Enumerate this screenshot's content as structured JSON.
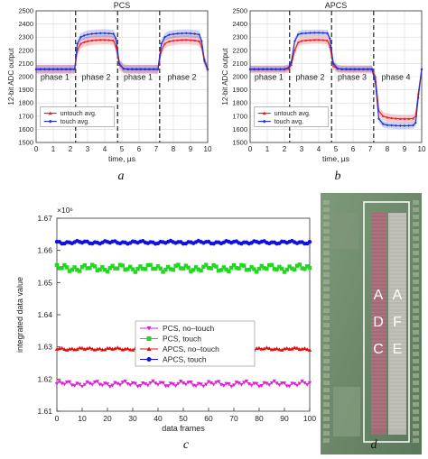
{
  "chart_data": [
    {
      "id": "a",
      "type": "line",
      "title": "PCS",
      "xlabel": "time, µs",
      "ylabel": "12-bit ADC output",
      "xlim": [
        0,
        10
      ],
      "ylim": [
        1500,
        2500
      ],
      "xticks": [
        "0",
        "1",
        "2",
        "3",
        "4",
        "5",
        "6",
        "7",
        "8",
        "9",
        "10"
      ],
      "yticks": [
        "1500",
        "1600",
        "1700",
        "1800",
        "1900",
        "2000",
        "2100",
        "2200",
        "2300",
        "2400",
        "2500"
      ],
      "grid": true,
      "legend_position": "bottom-left",
      "phase_boundaries": [
        2.3,
        4.75,
        7.2
      ],
      "phases": [
        {
          "label": "phase 1",
          "x": 1.1
        },
        {
          "label": "phase 2",
          "x": 3.5
        },
        {
          "label": "phase 1",
          "x": 5.95
        },
        {
          "label": "phase 2",
          "x": 8.5
        }
      ],
      "series": [
        {
          "name": "untouch avg.",
          "color": "#e8202a",
          "marker": "triangle",
          "x": [
            0,
            0.25,
            0.5,
            0.75,
            1,
            1.25,
            1.5,
            1.75,
            2,
            2.25,
            2.4,
            2.6,
            2.8,
            3.0,
            3.25,
            3.5,
            3.75,
            4,
            4.25,
            4.5,
            4.65,
            4.85,
            5.1,
            5.35,
            5.6,
            5.85,
            6.1,
            6.35,
            6.6,
            6.85,
            7.1,
            7.3,
            7.5,
            7.75,
            8,
            8.25,
            8.5,
            8.75,
            9,
            9.25,
            9.5,
            9.65,
            9.8,
            10
          ],
          "y": [
            2055,
            2055,
            2055,
            2055,
            2055,
            2055,
            2055,
            2055,
            2055,
            2055,
            2200,
            2250,
            2262,
            2270,
            2275,
            2278,
            2280,
            2280,
            2278,
            2275,
            2230,
            2090,
            2060,
            2056,
            2055,
            2055,
            2055,
            2055,
            2055,
            2055,
            2055,
            2200,
            2250,
            2268,
            2273,
            2277,
            2279,
            2280,
            2278,
            2275,
            2270,
            2230,
            2120,
            2055
          ],
          "band": 35
        },
        {
          "name": "touch avg.",
          "color": "#2233cc",
          "marker": "diamond",
          "x": [
            0,
            0.25,
            0.5,
            0.75,
            1,
            1.25,
            1.5,
            1.75,
            2,
            2.25,
            2.4,
            2.6,
            2.8,
            3.0,
            3.25,
            3.5,
            3.75,
            4,
            4.25,
            4.5,
            4.65,
            4.85,
            5.1,
            5.35,
            5.6,
            5.85,
            6.1,
            6.35,
            6.6,
            6.85,
            7.1,
            7.3,
            7.5,
            7.75,
            8,
            8.25,
            8.5,
            8.75,
            9,
            9.25,
            9.5,
            9.65,
            9.8,
            10
          ],
          "y": [
            2058,
            2058,
            2058,
            2058,
            2058,
            2058,
            2058,
            2058,
            2058,
            2058,
            2250,
            2300,
            2312,
            2320,
            2325,
            2328,
            2330,
            2330,
            2328,
            2325,
            2290,
            2100,
            2060,
            2058,
            2058,
            2058,
            2058,
            2058,
            2058,
            2058,
            2058,
            2250,
            2300,
            2318,
            2323,
            2327,
            2329,
            2330,
            2328,
            2325,
            2320,
            2270,
            2130,
            2058
          ],
          "band": 30
        }
      ]
    },
    {
      "id": "b",
      "type": "line",
      "title": "APCS",
      "xlabel": "time, µs",
      "ylabel": "12-bit ADC output",
      "xlim": [
        0,
        10
      ],
      "ylim": [
        1500,
        2500
      ],
      "xticks": [
        "0",
        "1",
        "2",
        "3",
        "4",
        "5",
        "6",
        "7",
        "8",
        "9",
        "10"
      ],
      "yticks": [
        "1500",
        "1600",
        "1700",
        "1800",
        "1900",
        "2000",
        "2100",
        "2200",
        "2300",
        "2400",
        "2500"
      ],
      "grid": true,
      "legend_position": "bottom-left",
      "phase_boundaries": [
        2.3,
        4.75,
        7.2
      ],
      "phases": [
        {
          "label": "phase 1",
          "x": 1.1
        },
        {
          "label": "phase 2",
          "x": 3.5
        },
        {
          "label": "phase 3",
          "x": 5.95
        },
        {
          "label": "phase 4",
          "x": 8.5
        }
      ],
      "series": [
        {
          "name": "untouch avg.",
          "color": "#e8202a",
          "marker": "triangle",
          "x": [
            0,
            0.25,
            0.5,
            0.75,
            1,
            1.25,
            1.5,
            1.75,
            2,
            2.25,
            2.4,
            2.6,
            2.8,
            3.0,
            3.25,
            3.5,
            3.75,
            4,
            4.25,
            4.5,
            4.65,
            4.85,
            5.1,
            5.35,
            5.6,
            5.85,
            6.1,
            6.35,
            6.6,
            6.85,
            7.1,
            7.3,
            7.5,
            7.75,
            8,
            8.25,
            8.5,
            8.75,
            9,
            9.25,
            9.5,
            9.65,
            9.8,
            10
          ],
          "y": [
            2055,
            2055,
            2055,
            2055,
            2055,
            2055,
            2055,
            2055,
            2055,
            2060,
            2090,
            2200,
            2260,
            2272,
            2276,
            2278,
            2280,
            2280,
            2278,
            2275,
            2230,
            2080,
            2060,
            2056,
            2055,
            2055,
            2055,
            2055,
            2055,
            2055,
            2055,
            2000,
            1740,
            1700,
            1690,
            1685,
            1682,
            1680,
            1680,
            1680,
            1682,
            1700,
            1870,
            2055
          ],
          "band": 30
        },
        {
          "name": "touch avg.",
          "color": "#2233cc",
          "marker": "diamond",
          "x": [
            0,
            0.25,
            0.5,
            0.75,
            1,
            1.25,
            1.5,
            1.75,
            2,
            2.25,
            2.4,
            2.6,
            2.8,
            3.0,
            3.25,
            3.5,
            3.75,
            4,
            4.25,
            4.5,
            4.65,
            4.85,
            5.1,
            5.35,
            5.6,
            5.85,
            6.1,
            6.35,
            6.6,
            6.85,
            7.1,
            7.3,
            7.5,
            7.75,
            8,
            8.25,
            8.5,
            8.75,
            9,
            9.25,
            9.5,
            9.65,
            9.8,
            10
          ],
          "y": [
            2058,
            2058,
            2058,
            2058,
            2058,
            2058,
            2058,
            2058,
            2058,
            2070,
            2110,
            2270,
            2320,
            2328,
            2330,
            2332,
            2333,
            2333,
            2332,
            2330,
            2290,
            2100,
            2062,
            2058,
            2058,
            2058,
            2058,
            2058,
            2058,
            2058,
            2058,
            1960,
            1680,
            1640,
            1632,
            1630,
            1628,
            1627,
            1627,
            1628,
            1630,
            1650,
            1840,
            2058
          ],
          "band": 25
        }
      ]
    },
    {
      "id": "c",
      "type": "scatter",
      "title": "",
      "xlabel": "data frames",
      "ylabel": "integrated data value",
      "yscale_label": "×10⁶",
      "xlim": [
        0,
        100
      ],
      "ylim": [
        1.61,
        1.67
      ],
      "xticks": [
        "0",
        "10",
        "20",
        "30",
        "40",
        "50",
        "60",
        "70",
        "80",
        "90",
        "100"
      ],
      "yticks": [
        "1.61",
        "1.62",
        "1.63",
        "1.64",
        "1.65",
        "1.66",
        "1.67"
      ],
      "grid": false,
      "legend_position": "center",
      "series": [
        {
          "name": "PCS, no–touch",
          "color": "#e020d8",
          "marker": "triangle-down",
          "base": 1.6185,
          "amp": 0.0009
        },
        {
          "name": "PCS, touch",
          "color": "#1fd81f",
          "marker": "square",
          "base": 1.6545,
          "amp": 0.0012
        },
        {
          "name": "APCS, no–touch",
          "color": "#e01010",
          "marker": "triangle",
          "base": 1.6294,
          "amp": 0.0004
        },
        {
          "name": "APCS, touch",
          "color": "#1010e0",
          "marker": "circle",
          "base": 1.6625,
          "amp": 0.0005
        }
      ]
    }
  ],
  "panel_labels": {
    "a": "a",
    "b": "b",
    "c": "c",
    "d": "d"
  },
  "chip": {
    "labels": [
      "A",
      "D",
      "C",
      "A",
      "F",
      "E"
    ],
    "colors": {
      "die": "#6d8a6a",
      "adc": "#a36a76",
      "afe": "#b8b8b0",
      "outline": "#ffffff"
    }
  }
}
